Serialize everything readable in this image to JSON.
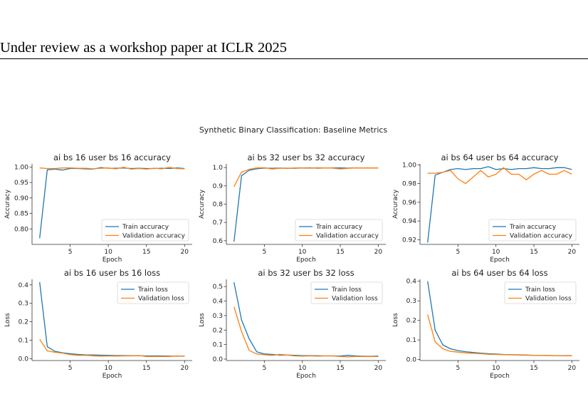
{
  "page": {
    "running_header": "Under review as a workshop paper at ICLR 2025"
  },
  "figure": {
    "suptitle": "Synthetic Binary Classification: Baseline Metrics"
  },
  "colors": {
    "train": "#1f77b4",
    "validation": "#ff7f0e"
  },
  "chart_data": [
    {
      "type": "line",
      "title": "ai bs 16 user bs 16 accuracy",
      "xlabel": "Epoch",
      "ylabel": "Accuracy",
      "xlim": [
        0,
        21
      ],
      "ylim": [
        0.75,
        1.01
      ],
      "xticks": [
        5,
        10,
        15,
        20
      ],
      "yticks": [
        0.8,
        0.85,
        0.9,
        0.95,
        1.0
      ],
      "ytick_labels": [
        "0.80",
        "0.85",
        "0.90",
        "0.95",
        "1.00"
      ],
      "legend": "lower-right",
      "grid": false,
      "x": [
        1,
        2,
        3,
        4,
        5,
        6,
        7,
        8,
        9,
        10,
        11,
        12,
        13,
        14,
        15,
        16,
        17,
        18,
        19,
        20
      ],
      "series": [
        {
          "name": "Train accuracy",
          "values": [
            0.77,
            0.991,
            0.993,
            0.99,
            0.995,
            0.995,
            0.994,
            0.993,
            0.998,
            0.996,
            0.996,
            0.997,
            0.995,
            0.996,
            0.995,
            0.995,
            0.996,
            0.995,
            0.997,
            0.995
          ]
        },
        {
          "name": "Validation accuracy",
          "values": [
            0.997,
            0.995,
            0.995,
            0.997,
            0.997,
            0.996,
            0.996,
            0.994,
            0.996,
            0.997,
            0.994,
            0.999,
            0.993,
            0.995,
            0.993,
            0.996,
            0.994,
            0.999,
            0.995,
            0.994
          ]
        }
      ]
    },
    {
      "type": "line",
      "title": "ai bs 32 user bs 32 accuracy",
      "xlabel": "Epoch",
      "ylabel": "Accuracy",
      "xlim": [
        0,
        21
      ],
      "ylim": [
        0.58,
        1.02
      ],
      "xticks": [
        5,
        10,
        15,
        20
      ],
      "yticks": [
        0.6,
        0.7,
        0.8,
        0.9,
        1.0
      ],
      "ytick_labels": [
        "0.6",
        "0.7",
        "0.8",
        "0.9",
        "1.0"
      ],
      "legend": "lower-right",
      "grid": false,
      "x": [
        1,
        2,
        3,
        4,
        5,
        6,
        7,
        8,
        9,
        10,
        11,
        12,
        13,
        14,
        15,
        16,
        17,
        18,
        19,
        20
      ],
      "series": [
        {
          "name": "Train accuracy",
          "values": [
            0.595,
            0.955,
            0.985,
            0.993,
            0.997,
            0.996,
            0.997,
            0.996,
            0.997,
            0.998,
            0.997,
            0.998,
            0.997,
            0.998,
            0.998,
            0.997,
            0.998,
            0.997,
            0.998,
            0.998
          ]
        },
        {
          "name": "Validation accuracy",
          "values": [
            0.895,
            0.975,
            0.99,
            0.998,
            0.999,
            0.992,
            0.996,
            0.997,
            0.995,
            0.998,
            0.999,
            0.996,
            0.998,
            0.997,
            0.992,
            0.996,
            0.998,
            0.997,
            0.998,
            0.998
          ]
        }
      ]
    },
    {
      "type": "line",
      "title": "ai bs 64 user bs 64 accuracy",
      "xlabel": "Epoch",
      "ylabel": "Accuracy",
      "xlim": [
        0,
        21
      ],
      "ylim": [
        0.915,
        1.001
      ],
      "xticks": [
        5,
        10,
        15,
        20
      ],
      "yticks": [
        0.92,
        0.94,
        0.96,
        0.98,
        1.0
      ],
      "ytick_labels": [
        "0.92",
        "0.94",
        "0.96",
        "0.98",
        "1.00"
      ],
      "legend": "lower-right",
      "grid": false,
      "x": [
        1,
        2,
        3,
        4,
        5,
        6,
        7,
        8,
        9,
        10,
        11,
        12,
        13,
        14,
        15,
        16,
        17,
        18,
        19,
        20
      ],
      "series": [
        {
          "name": "Train accuracy",
          "values": [
            0.917,
            0.989,
            0.992,
            0.995,
            0.996,
            0.995,
            0.996,
            0.996,
            0.998,
            0.995,
            0.996,
            0.995,
            0.996,
            0.996,
            0.997,
            0.996,
            0.996,
            0.997,
            0.997,
            0.995
          ]
        },
        {
          "name": "Validation accuracy",
          "values": [
            0.991,
            0.991,
            0.992,
            0.994,
            0.985,
            0.98,
            0.987,
            0.994,
            0.987,
            0.99,
            0.997,
            0.99,
            0.99,
            0.984,
            0.99,
            0.994,
            0.99,
            0.99,
            0.994,
            0.99
          ]
        }
      ]
    },
    {
      "type": "line",
      "title": "ai bs 16 user bs 16 loss",
      "xlabel": "Epoch",
      "ylabel": "Loss",
      "xlim": [
        0,
        21
      ],
      "ylim": [
        -0.01,
        0.43
      ],
      "xticks": [
        5,
        10,
        15,
        20
      ],
      "yticks": [
        0.0,
        0.1,
        0.2,
        0.3,
        0.4
      ],
      "ytick_labels": [
        "0.0",
        "0.1",
        "0.2",
        "0.3",
        "0.4"
      ],
      "legend": "top-right",
      "grid": false,
      "x": [
        1,
        2,
        3,
        4,
        5,
        6,
        7,
        8,
        9,
        10,
        11,
        12,
        13,
        14,
        15,
        16,
        17,
        18,
        19,
        20
      ],
      "series": [
        {
          "name": "Train loss",
          "values": [
            0.415,
            0.065,
            0.04,
            0.032,
            0.027,
            0.023,
            0.021,
            0.02,
            0.019,
            0.018,
            0.017,
            0.017,
            0.016,
            0.016,
            0.015,
            0.015,
            0.015,
            0.014,
            0.014,
            0.014
          ]
        },
        {
          "name": "Validation loss",
          "values": [
            0.105,
            0.042,
            0.035,
            0.03,
            0.022,
            0.018,
            0.018,
            0.016,
            0.014,
            0.015,
            0.014,
            0.015,
            0.015,
            0.017,
            0.012,
            0.012,
            0.012,
            0.012,
            0.015,
            0.013
          ]
        }
      ]
    },
    {
      "type": "line",
      "title": "ai bs 32 user bs 32 loss",
      "xlabel": "Epoch",
      "ylabel": "Loss",
      "xlim": [
        0,
        21
      ],
      "ylim": [
        -0.01,
        0.55
      ],
      "xticks": [
        5,
        10,
        15,
        20
      ],
      "yticks": [
        0.0,
        0.1,
        0.2,
        0.3,
        0.4,
        0.5
      ],
      "ytick_labels": [
        "0.0",
        "0.1",
        "0.2",
        "0.3",
        "0.4",
        "0.5"
      ],
      "legend": "top-right",
      "grid": false,
      "x": [
        1,
        2,
        3,
        4,
        5,
        6,
        7,
        8,
        9,
        10,
        11,
        12,
        13,
        14,
        15,
        16,
        17,
        18,
        19,
        20
      ],
      "series": [
        {
          "name": "Train loss",
          "values": [
            0.53,
            0.27,
            0.14,
            0.05,
            0.035,
            0.032,
            0.028,
            0.028,
            0.026,
            0.024,
            0.024,
            0.023,
            0.022,
            0.022,
            0.021,
            0.026,
            0.022,
            0.02,
            0.019,
            0.021
          ]
        },
        {
          "name": "Validation loss",
          "values": [
            0.36,
            0.19,
            0.06,
            0.035,
            0.03,
            0.025,
            0.032,
            0.028,
            0.022,
            0.02,
            0.022,
            0.02,
            0.022,
            0.022,
            0.018,
            0.015,
            0.018,
            0.018,
            0.017,
            0.018
          ]
        }
      ]
    },
    {
      "type": "line",
      "title": "ai bs 64 user bs 64 loss",
      "xlabel": "Epoch",
      "ylabel": "Loss",
      "xlim": [
        0,
        21
      ],
      "ylim": [
        -0.005,
        0.41
      ],
      "xticks": [
        5,
        10,
        15,
        20
      ],
      "yticks": [
        0.0,
        0.1,
        0.2,
        0.3,
        0.4
      ],
      "ytick_labels": [
        "0.0",
        "0.1",
        "0.2",
        "0.3",
        "0.4"
      ],
      "legend": "top-right",
      "grid": false,
      "x": [
        1,
        2,
        3,
        4,
        5,
        6,
        7,
        8,
        9,
        10,
        11,
        12,
        13,
        14,
        15,
        16,
        17,
        18,
        19,
        20
      ],
      "series": [
        {
          "name": "Train loss",
          "values": [
            0.4,
            0.15,
            0.075,
            0.055,
            0.046,
            0.04,
            0.036,
            0.033,
            0.03,
            0.028,
            0.026,
            0.025,
            0.024,
            0.023,
            0.022,
            0.021,
            0.021,
            0.02,
            0.02,
            0.02
          ]
        },
        {
          "name": "Validation loss",
          "values": [
            0.23,
            0.09,
            0.055,
            0.042,
            0.038,
            0.034,
            0.032,
            0.03,
            0.027,
            0.026,
            0.025,
            0.024,
            0.023,
            0.022,
            0.022,
            0.021,
            0.02,
            0.02,
            0.019,
            0.019
          ]
        }
      ]
    }
  ]
}
